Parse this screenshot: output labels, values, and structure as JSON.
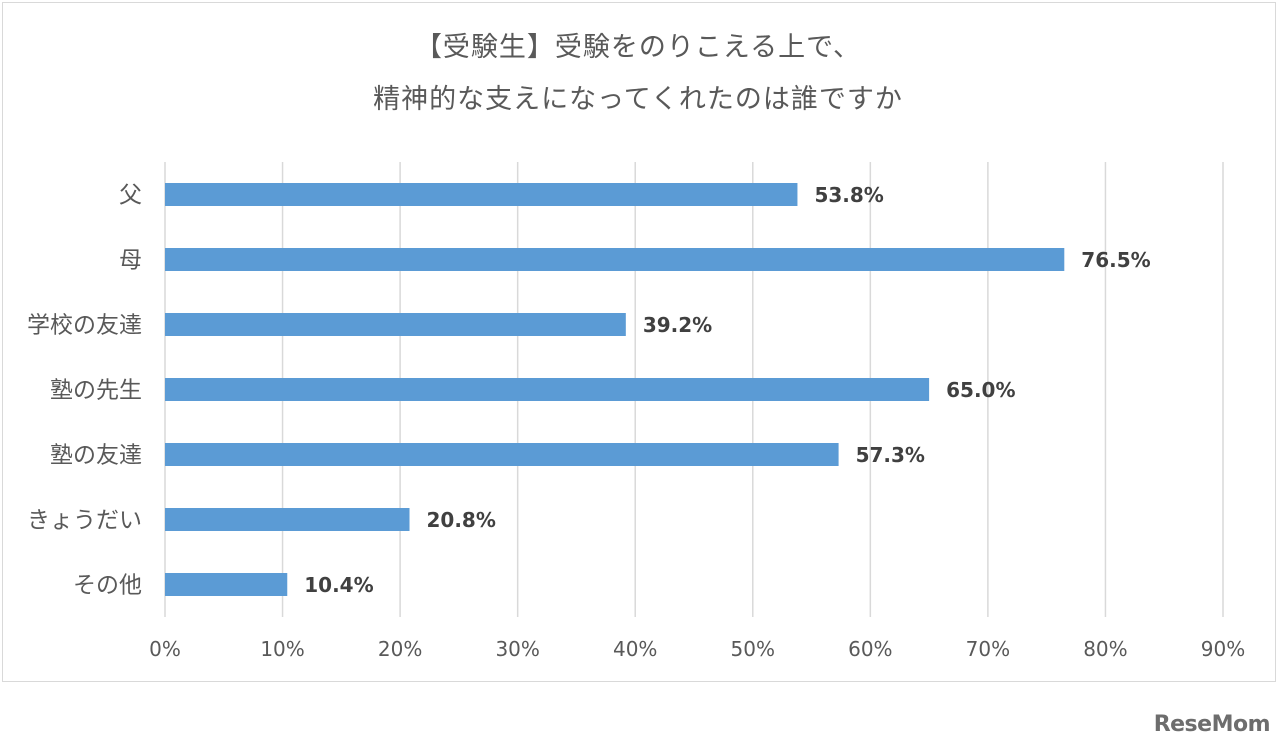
{
  "chart_data": {
    "type": "bar",
    "orientation": "horizontal",
    "title": [
      "【受験生】受験をのりこえる上で、",
      "精神的な支えになってくれたのは誰ですか"
    ],
    "categories": [
      "父",
      "母",
      "学校の友達",
      "塾の先生",
      "塾の友達",
      "きょうだい",
      "その他"
    ],
    "values": [
      53.8,
      76.5,
      39.2,
      65.0,
      57.3,
      20.8,
      10.4
    ],
    "data_labels": [
      "53.8%",
      "76.5%",
      "39.2%",
      "65.0%",
      "57.3%",
      "20.8%",
      "10.4%"
    ],
    "xlim": [
      0,
      90
    ],
    "x_ticks": [
      0,
      10,
      20,
      30,
      40,
      50,
      60,
      70,
      80,
      90
    ],
    "x_tick_labels": [
      "0%",
      "10%",
      "20%",
      "30%",
      "40%",
      "50%",
      "60%",
      "70%",
      "80%",
      "90%"
    ],
    "xlabel": "",
    "ylabel": "",
    "grid": true,
    "legend": "none",
    "bar_color": "#5b9bd5",
    "grid_color": "#d9d9d9",
    "text_color": "#595959",
    "label_color": "#404040"
  },
  "watermark": "ReseMom"
}
